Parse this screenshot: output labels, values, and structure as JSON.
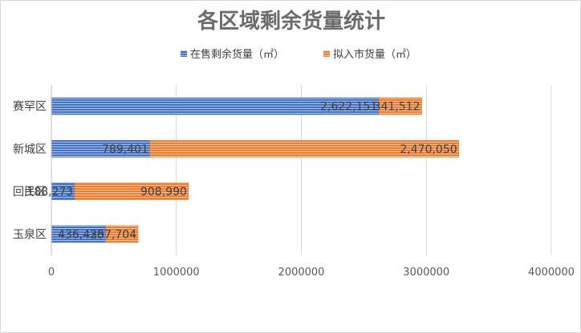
{
  "chart_data": {
    "type": "bar",
    "orientation": "horizontal",
    "stacked": true,
    "title": "各区域剩余货量统计",
    "categories": [
      "赛罕区",
      "新城区",
      "回民区",
      "玉泉区"
    ],
    "series": [
      {
        "name": "在售剩余货量（㎡）",
        "values": [
          2622151,
          789401,
          188273,
          436430
        ],
        "labels": [
          "2,622,151",
          "789,401",
          "188,273",
          "436,430"
        ],
        "color": "#4472C4"
      },
      {
        "name": "拟入市货量（㎡）",
        "values": [
          341512,
          2470050,
          908990,
          257704
        ],
        "labels": [
          "341,512",
          "2,470,050",
          "908,990",
          "257,704"
        ],
        "color": "#ED7D31"
      }
    ],
    "xlim": [
      0,
      4000000
    ],
    "x_ticks": [
      0,
      1000000,
      2000000,
      3000000,
      4000000
    ],
    "x_tick_labels": [
      "0",
      "1000000",
      "2000000",
      "3000000",
      "4000000"
    ],
    "grid": true,
    "legend_position": "top"
  }
}
